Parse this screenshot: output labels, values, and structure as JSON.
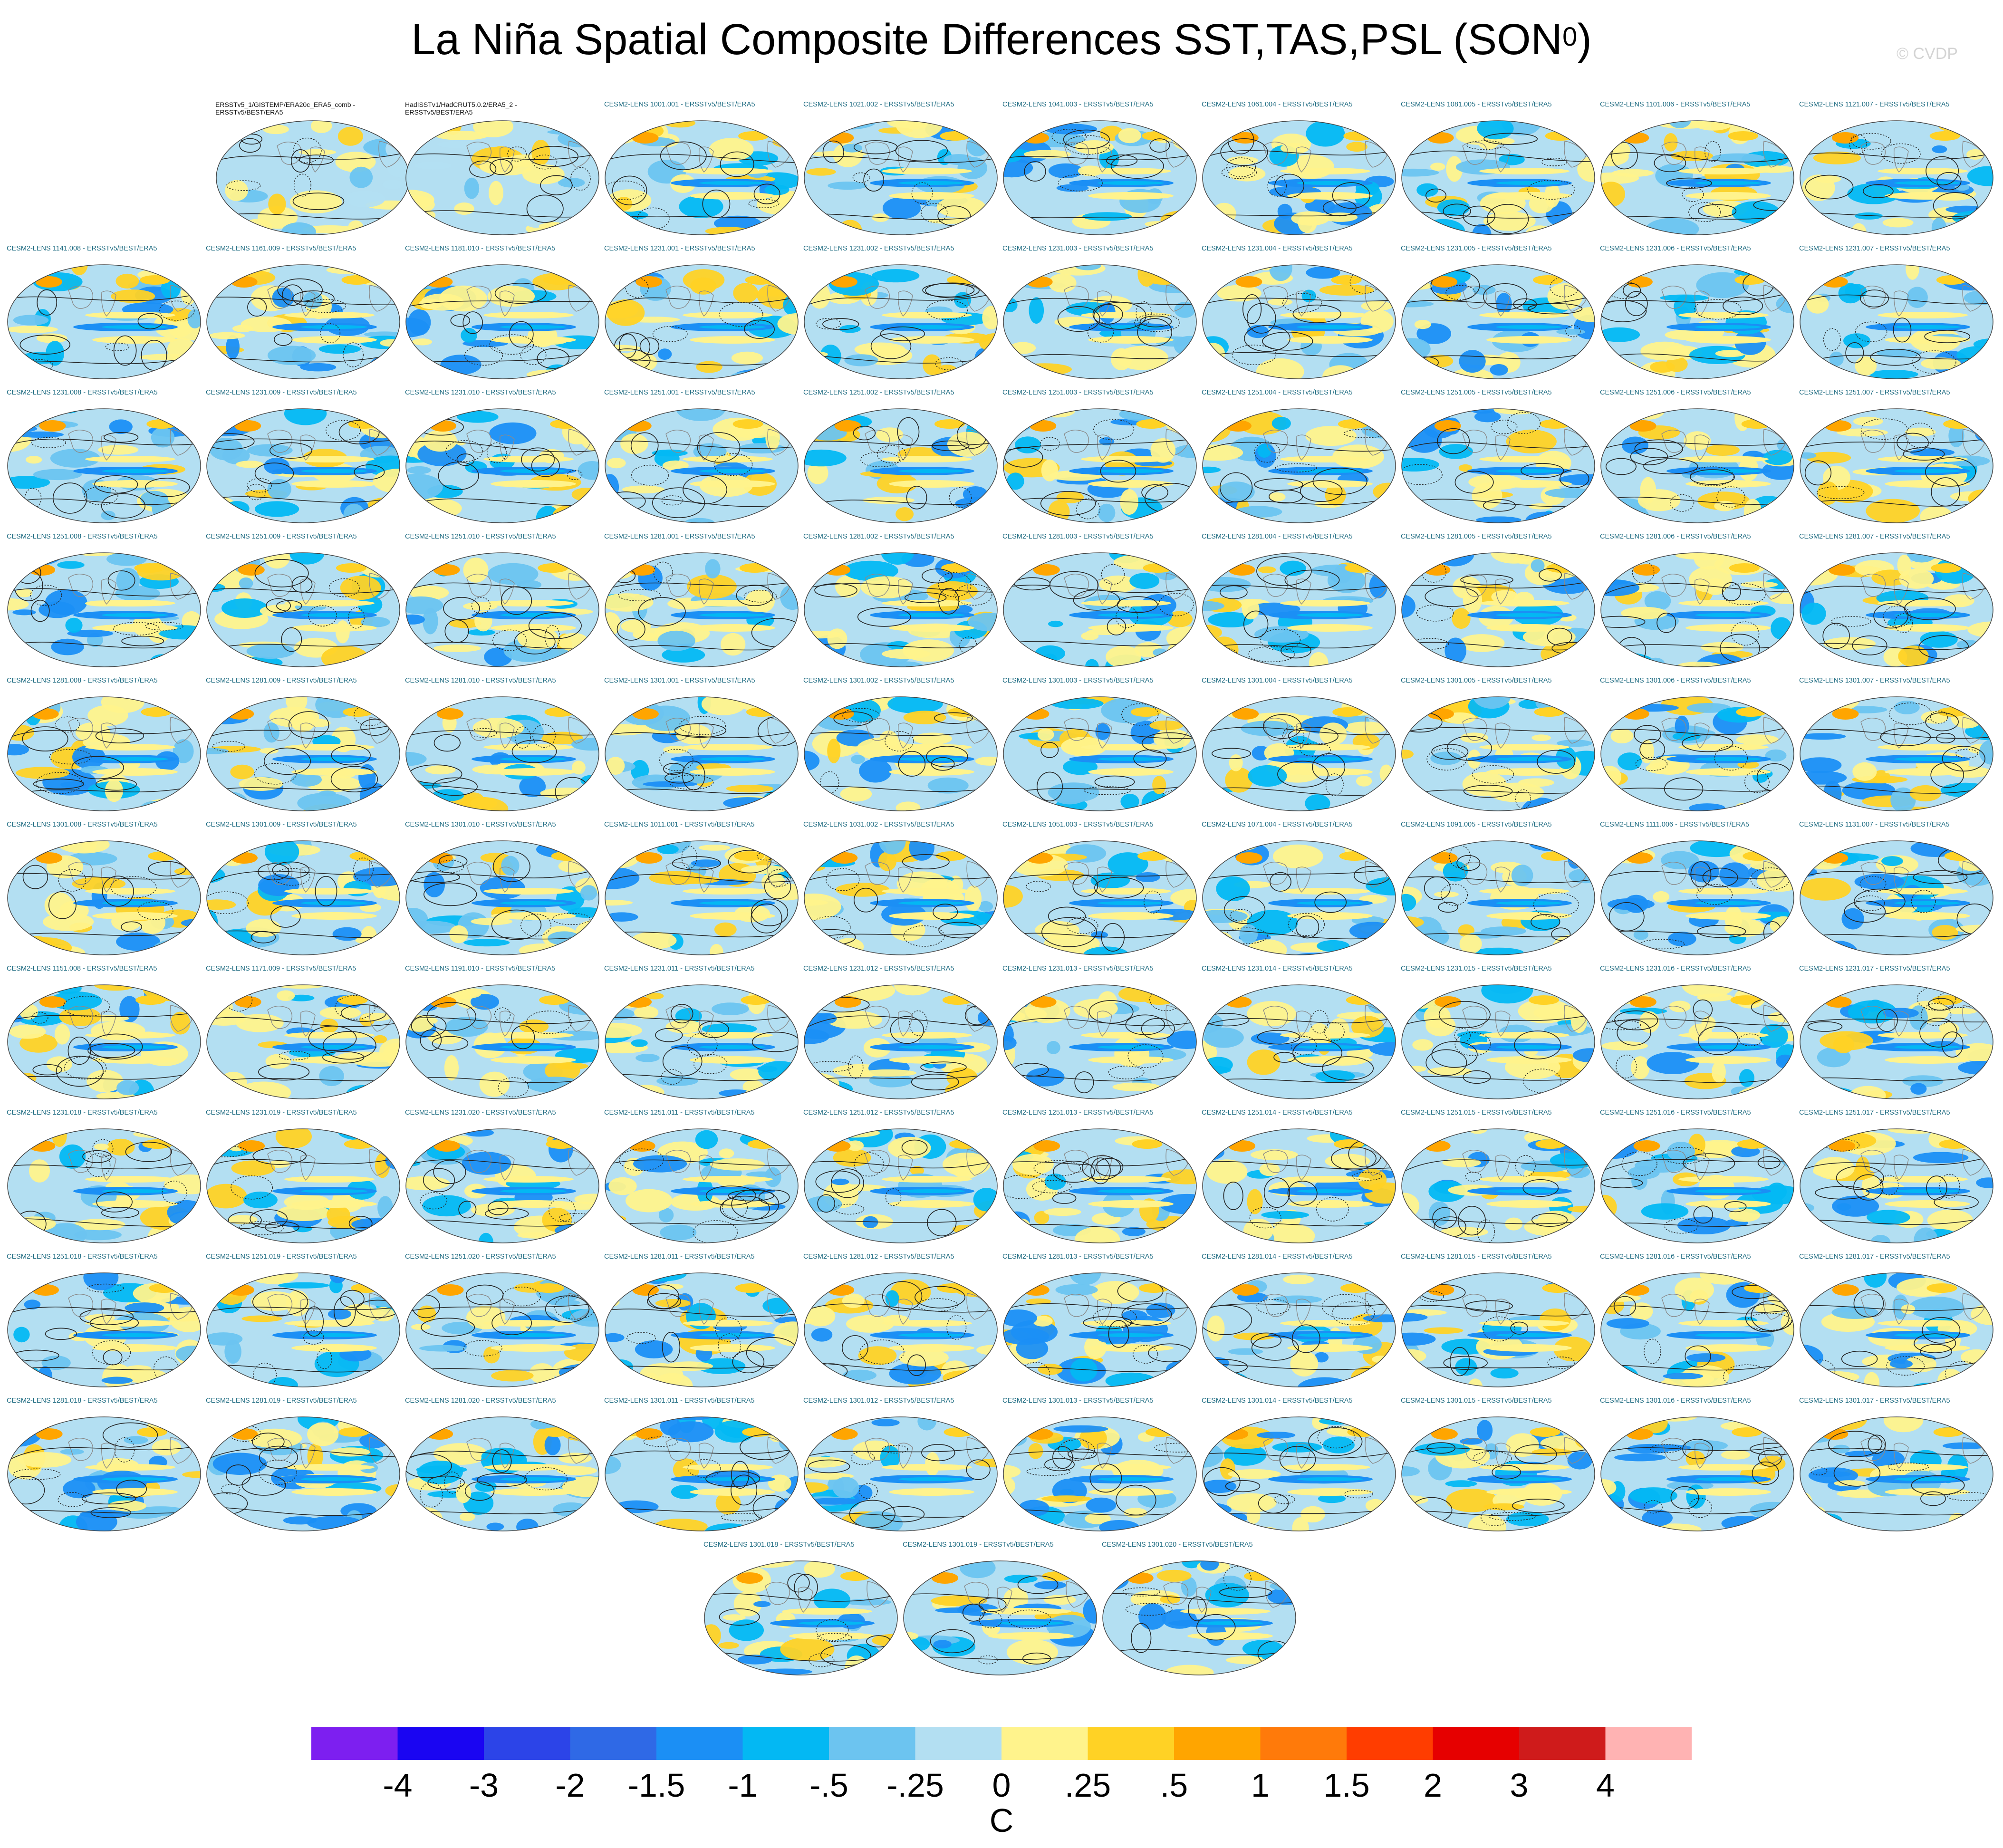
{
  "title": {
    "main": "La Niña Spatial Composite Differences SST,TAS,PSL (SON",
    "sup": "0",
    "close": ")"
  },
  "watermark": "© CVDP",
  "panels": [
    "ERSSTv5_1/GISTEMP/ERA20c_ERA5_comb - ERSSTv5/BEST/ERA5",
    "HadISSTv1/HadCRUT5.0.2/ERA5_2 - ERSSTv5/BEST/ERA5",
    "CESM2-LENS 1001.001 - ERSSTv5/BEST/ERA5",
    "CESM2-LENS 1021.002 - ERSSTv5/BEST/ERA5",
    "CESM2-LENS 1041.003 - ERSSTv5/BEST/ERA5",
    "CESM2-LENS 1061.004 - ERSSTv5/BEST/ERA5",
    "CESM2-LENS 1081.005 - ERSSTv5/BEST/ERA5",
    "CESM2-LENS 1101.006 - ERSSTv5/BEST/ERA5",
    "CESM2-LENS 1121.007 - ERSSTv5/BEST/ERA5",
    "CESM2-LENS 1141.008 - ERSSTv5/BEST/ERA5",
    "CESM2-LENS 1161.009 - ERSSTv5/BEST/ERA5",
    "CESM2-LENS 1181.010 - ERSSTv5/BEST/ERA5",
    "CESM2-LENS 1231.001 - ERSSTv5/BEST/ERA5",
    "CESM2-LENS 1231.002 - ERSSTv5/BEST/ERA5",
    "CESM2-LENS 1231.003 - ERSSTv5/BEST/ERA5",
    "CESM2-LENS 1231.004 - ERSSTv5/BEST/ERA5",
    "CESM2-LENS 1231.005 - ERSSTv5/BEST/ERA5",
    "CESM2-LENS 1231.006 - ERSSTv5/BEST/ERA5",
    "CESM2-LENS 1231.007 - ERSSTv5/BEST/ERA5",
    "CESM2-LENS 1231.008 - ERSSTv5/BEST/ERA5",
    "CESM2-LENS 1231.009 - ERSSTv5/BEST/ERA5",
    "CESM2-LENS 1231.010 - ERSSTv5/BEST/ERA5",
    "CESM2-LENS 1251.001 - ERSSTv5/BEST/ERA5",
    "CESM2-LENS 1251.002 - ERSSTv5/BEST/ERA5",
    "CESM2-LENS 1251.003 - ERSSTv5/BEST/ERA5",
    "CESM2-LENS 1251.004 - ERSSTv5/BEST/ERA5",
    "CESM2-LENS 1251.005 - ERSSTv5/BEST/ERA5",
    "CESM2-LENS 1251.006 - ERSSTv5/BEST/ERA5",
    "CESM2-LENS 1251.007 - ERSSTv5/BEST/ERA5",
    "CESM2-LENS 1251.008 - ERSSTv5/BEST/ERA5",
    "CESM2-LENS 1251.009 - ERSSTv5/BEST/ERA5",
    "CESM2-LENS 1251.010 - ERSSTv5/BEST/ERA5",
    "CESM2-LENS 1281.001 - ERSSTv5/BEST/ERA5",
    "CESM2-LENS 1281.002 - ERSSTv5/BEST/ERA5",
    "CESM2-LENS 1281.003 - ERSSTv5/BEST/ERA5",
    "CESM2-LENS 1281.004 - ERSSTv5/BEST/ERA5",
    "CESM2-LENS 1281.005 - ERSSTv5/BEST/ERA5",
    "CESM2-LENS 1281.006 - ERSSTv5/BEST/ERA5",
    "CESM2-LENS 1281.007 - ERSSTv5/BEST/ERA5",
    "CESM2-LENS 1281.008 - ERSSTv5/BEST/ERA5",
    "CESM2-LENS 1281.009 - ERSSTv5/BEST/ERA5",
    "CESM2-LENS 1281.010 - ERSSTv5/BEST/ERA5",
    "CESM2-LENS 1301.001 - ERSSTv5/BEST/ERA5",
    "CESM2-LENS 1301.002 - ERSSTv5/BEST/ERA5",
    "CESM2-LENS 1301.003 - ERSSTv5/BEST/ERA5",
    "CESM2-LENS 1301.004 - ERSSTv5/BEST/ERA5",
    "CESM2-LENS 1301.005 - ERSSTv5/BEST/ERA5",
    "CESM2-LENS 1301.006 - ERSSTv5/BEST/ERA5",
    "CESM2-LENS 1301.007 - ERSSTv5/BEST/ERA5",
    "CESM2-LENS 1301.008 - ERSSTv5/BEST/ERA5",
    "CESM2-LENS 1301.009 - ERSSTv5/BEST/ERA5",
    "CESM2-LENS 1301.010 - ERSSTv5/BEST/ERA5",
    "CESM2-LENS 1011.001 - ERSSTv5/BEST/ERA5",
    "CESM2-LENS 1031.002 - ERSSTv5/BEST/ERA5",
    "CESM2-LENS 1051.003 - ERSSTv5/BEST/ERA5",
    "CESM2-LENS 1071.004 - ERSSTv5/BEST/ERA5",
    "CESM2-LENS 1091.005 - ERSSTv5/BEST/ERA5",
    "CESM2-LENS 1111.006 - ERSSTv5/BEST/ERA5",
    "CESM2-LENS 1131.007 - ERSSTv5/BEST/ERA5",
    "CESM2-LENS 1151.008 - ERSSTv5/BEST/ERA5",
    "CESM2-LENS 1171.009 - ERSSTv5/BEST/ERA5",
    "CESM2-LENS 1191.010 - ERSSTv5/BEST/ERA5",
    "CESM2-LENS 1231.011 - ERSSTv5/BEST/ERA5",
    "CESM2-LENS 1231.012 - ERSSTv5/BEST/ERA5",
    "CESM2-LENS 1231.013 - ERSSTv5/BEST/ERA5",
    "CESM2-LENS 1231.014 - ERSSTv5/BEST/ERA5",
    "CESM2-LENS 1231.015 - ERSSTv5/BEST/ERA5",
    "CESM2-LENS 1231.016 - ERSSTv5/BEST/ERA5",
    "CESM2-LENS 1231.017 - ERSSTv5/BEST/ERA5",
    "CESM2-LENS 1231.018 - ERSSTv5/BEST/ERA5",
    "CESM2-LENS 1231.019 - ERSSTv5/BEST/ERA5",
    "CESM2-LENS 1231.020 - ERSSTv5/BEST/ERA5",
    "CESM2-LENS 1251.011 - ERSSTv5/BEST/ERA5",
    "CESM2-LENS 1251.012 - ERSSTv5/BEST/ERA5",
    "CESM2-LENS 1251.013 - ERSSTv5/BEST/ERA5",
    "CESM2-LENS 1251.014 - ERSSTv5/BEST/ERA5",
    "CESM2-LENS 1251.015 - ERSSTv5/BEST/ERA5",
    "CESM2-LENS 1251.016 - ERSSTv5/BEST/ERA5",
    "CESM2-LENS 1251.017 - ERSSTv5/BEST/ERA5",
    "CESM2-LENS 1251.018 - ERSSTv5/BEST/ERA5",
    "CESM2-LENS 1251.019 - ERSSTv5/BEST/ERA5",
    "CESM2-LENS 1251.020 - ERSSTv5/BEST/ERA5",
    "CESM2-LENS 1281.011 - ERSSTv5/BEST/ERA5",
    "CESM2-LENS 1281.012 - ERSSTv5/BEST/ERA5",
    "CESM2-LENS 1281.013 - ERSSTv5/BEST/ERA5",
    "CESM2-LENS 1281.014 - ERSSTv5/BEST/ERA5",
    "CESM2-LENS 1281.015 - ERSSTv5/BEST/ERA5",
    "CESM2-LENS 1281.016 - ERSSTv5/BEST/ERA5",
    "CESM2-LENS 1281.017 - ERSSTv5/BEST/ERA5",
    "CESM2-LENS 1281.018 - ERSSTv5/BEST/ERA5",
    "CESM2-LENS 1281.019 - ERSSTv5/BEST/ERA5",
    "CESM2-LENS 1281.020 - ERSSTv5/BEST/ERA5",
    "CESM2-LENS 1301.011 - ERSSTv5/BEST/ERA5",
    "CESM2-LENS 1301.012 - ERSSTv5/BEST/ERA5",
    "CESM2-LENS 1301.013 - ERSSTv5/BEST/ERA5",
    "CESM2-LENS 1301.014 - ERSSTv5/BEST/ERA5",
    "CESM2-LENS 1301.015 - ERSSTv5/BEST/ERA5",
    "CESM2-LENS 1301.016 - ERSSTv5/BEST/ERA5",
    "CESM2-LENS 1301.017 - ERSSTv5/BEST/ERA5",
    "CESM2-LENS 1301.018 - ERSSTv5/BEST/ERA5",
    "CESM2-LENS 1301.019 - ERSSTv5/BEST/ERA5",
    "CESM2-LENS 1301.020 - ERSSTv5/BEST/ERA5"
  ],
  "colorbar": {
    "colors": [
      "#7d1ff0",
      "#1a05f2",
      "#2c44e8",
      "#2f69e6",
      "#1b8ff5",
      "#03b8f3",
      "#6cc4f0",
      "#b3dff2",
      "#fff38c",
      "#ffd225",
      "#ffa500",
      "#ff7a0a",
      "#ff3d00",
      "#e60000",
      "#cf1b1b",
      "#ffb3b3"
    ],
    "labels": [
      "-4",
      "-3",
      "-2",
      "-1.5",
      "-1",
      "-.5",
      "-.25",
      "0",
      ".25",
      ".5",
      "1",
      "1.5",
      "2",
      "3",
      "4"
    ],
    "units": "C"
  }
}
